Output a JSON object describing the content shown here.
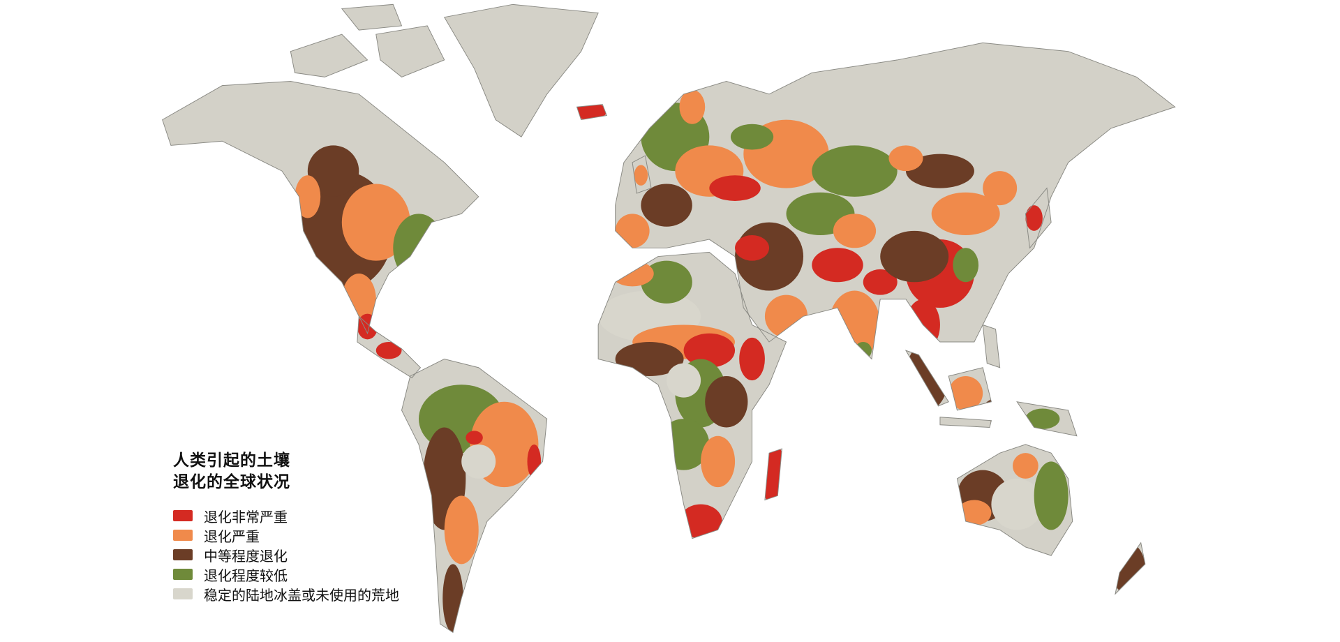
{
  "map": {
    "land_base_color": "#d3d1c8",
    "coastline_color": "#8a8a84",
    "ocean_color": "#ffffff"
  },
  "legend": {
    "title_line1": "人类引起的土壤",
    "title_line2": "退化的全球状况",
    "items": [
      {
        "label": "退化非常严重",
        "color": "#d42a22"
      },
      {
        "label": "退化严重",
        "color": "#f08a4b"
      },
      {
        "label": "中等程度退化",
        "color": "#6b3d26"
      },
      {
        "label": "退化程度较低",
        "color": "#6f8a3a"
      },
      {
        "label": "稳定的陆地冰盖或未使用的荒地",
        "color": "#d8d6cc"
      }
    ]
  }
}
